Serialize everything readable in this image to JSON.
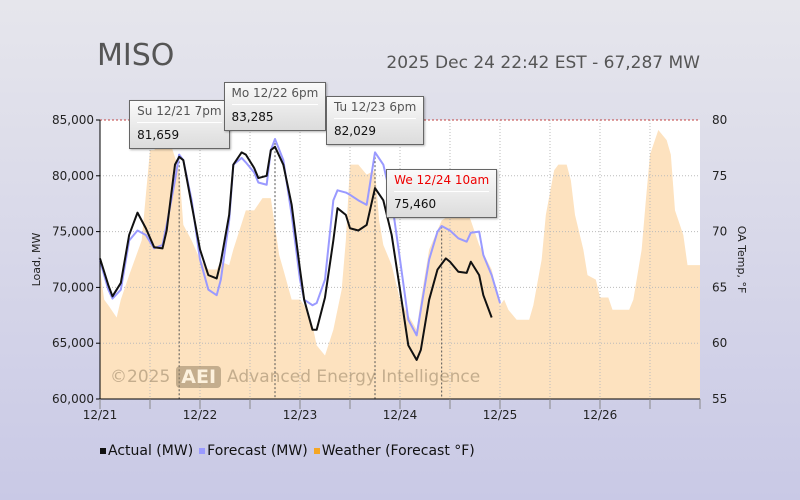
{
  "title": "MISO",
  "subtitle": "2025 Dec 24 22:42 EST - 67,287 MW",
  "watermark": {
    "copyright": "©2025",
    "logo": "AEI",
    "text": "Advanced Energy Intelligence"
  },
  "colors": {
    "actual": "#111111",
    "forecast": "#9a9aff",
    "weather": "#fde2bf",
    "max_line": "#c04040"
  },
  "legend": [
    {
      "label": "Actual (MW)",
      "color": "#111111"
    },
    {
      "label": "Forecast (MW)",
      "color": "#9a9aff"
    },
    {
      "label": "Weather (Forecast °F)",
      "color": "#f5a623"
    }
  ],
  "tooltips": [
    {
      "label": "Su 12/21 7pm",
      "value": "81,659",
      "hour": 19,
      "mw": 81659,
      "highlight": false
    },
    {
      "label": "Mo 12/22 6pm",
      "value": "83,285",
      "hour": 42,
      "mw": 83285,
      "highlight": false
    },
    {
      "label": "Tu 12/23 6pm",
      "value": "82,029",
      "hour": 66,
      "mw": 82029,
      "highlight": false
    },
    {
      "label": "We 12/24 10am",
      "value": "75,460",
      "hour": 82,
      "mw": 75460,
      "highlight": true
    }
  ],
  "chart_data": {
    "type": "line",
    "x_unit": "hours since 12/21 00:00",
    "xlim": [
      0,
      144
    ],
    "x_ticks": [
      {
        "hour": 0,
        "label": "12/21"
      },
      {
        "hour": 24,
        "label": "12/22"
      },
      {
        "hour": 48,
        "label": "12/23"
      },
      {
        "hour": 72,
        "label": "12/24"
      },
      {
        "hour": 96,
        "label": "12/25"
      },
      {
        "hour": 120,
        "label": "12/26"
      }
    ],
    "ylabel": "Load, MW",
    "ylim": [
      60000,
      85000
    ],
    "y_ticks": [
      "60,000",
      "65,000",
      "70,000",
      "75,000",
      "80,000",
      "85,000"
    ],
    "y2label": "OA Temp, °F",
    "y2lim": [
      55,
      80
    ],
    "y2_ticks": [
      "55",
      "60",
      "65",
      "70",
      "75",
      "80"
    ],
    "grid": true,
    "series": [
      {
        "name": "Weather (Forecast °F)",
        "axis": "right",
        "type": "area",
        "points": [
          [
            0,
            66.6
          ],
          [
            1,
            63.9
          ],
          [
            2,
            63.4
          ],
          [
            4,
            62.3
          ],
          [
            5,
            63.9
          ],
          [
            7,
            66.1
          ],
          [
            10,
            69.2
          ],
          [
            12,
            77.3
          ],
          [
            13,
            77.3
          ],
          [
            14,
            77.8
          ],
          [
            17,
            77.8
          ],
          [
            19,
            75.5
          ],
          [
            20,
            70.6
          ],
          [
            22,
            69.2
          ],
          [
            24,
            67.5
          ],
          [
            26,
            66.6
          ],
          [
            28,
            66.6
          ],
          [
            29,
            67.3
          ],
          [
            31,
            67.0
          ],
          [
            32,
            68.4
          ],
          [
            35,
            71.9
          ],
          [
            37,
            71.9
          ],
          [
            39,
            73.0
          ],
          [
            41,
            73.0
          ],
          [
            43,
            67.9
          ],
          [
            44,
            66.6
          ],
          [
            46,
            63.9
          ],
          [
            48,
            63.9
          ],
          [
            49,
            63.4
          ],
          [
            51,
            61.6
          ],
          [
            52,
            59.8
          ],
          [
            54,
            58.9
          ],
          [
            56,
            61.2
          ],
          [
            58,
            64.8
          ],
          [
            59,
            69.2
          ],
          [
            60,
            76.0
          ],
          [
            62,
            76.0
          ],
          [
            64,
            75.1
          ],
          [
            66,
            75.5
          ],
          [
            67,
            71.0
          ],
          [
            68,
            68.8
          ],
          [
            70,
            67.0
          ],
          [
            72,
            63.9
          ],
          [
            74,
            62.5
          ],
          [
            76,
            61.2
          ],
          [
            77,
            63.9
          ],
          [
            79,
            68.4
          ],
          [
            82,
            71.0
          ],
          [
            84,
            71.5
          ],
          [
            86,
            71.5
          ],
          [
            88,
            71.9
          ],
          [
            89,
            71.0
          ],
          [
            91,
            68.8
          ],
          [
            94,
            66.6
          ],
          [
            96,
            63.4
          ],
          [
            97,
            63.9
          ],
          [
            98,
            63.0
          ],
          [
            100,
            62.1
          ],
          [
            103,
            62.1
          ],
          [
            104,
            63.4
          ],
          [
            106,
            67.5
          ],
          [
            107,
            71.5
          ],
          [
            109,
            75.5
          ],
          [
            110,
            76.0
          ],
          [
            112,
            76.0
          ],
          [
            113,
            74.6
          ],
          [
            114,
            71.5
          ],
          [
            116,
            68.4
          ],
          [
            117,
            66.1
          ],
          [
            119,
            65.7
          ],
          [
            120,
            64.1
          ],
          [
            122,
            64.1
          ],
          [
            123,
            63.0
          ],
          [
            127,
            63.0
          ],
          [
            128,
            63.9
          ],
          [
            130,
            68.4
          ],
          [
            131,
            72.8
          ],
          [
            132,
            76.9
          ],
          [
            134,
            79.1
          ],
          [
            136,
            78.2
          ],
          [
            137,
            76.9
          ],
          [
            138,
            71.9
          ],
          [
            140,
            69.7
          ],
          [
            141,
            67.0
          ],
          [
            144,
            67.0
          ]
        ]
      },
      {
        "name": "Forecast (MW)",
        "axis": "left",
        "type": "line",
        "points": [
          [
            0,
            72400
          ],
          [
            2,
            69800
          ],
          [
            3,
            69000
          ],
          [
            5,
            69800
          ],
          [
            7,
            74200
          ],
          [
            9,
            75100
          ],
          [
            11,
            74700
          ],
          [
            13,
            73500
          ],
          [
            15,
            73800
          ],
          [
            16,
            75600
          ],
          [
            18,
            79600
          ],
          [
            19,
            81900
          ],
          [
            20,
            81400
          ],
          [
            22,
            77800
          ],
          [
            24,
            72500
          ],
          [
            26,
            69800
          ],
          [
            28,
            69300
          ],
          [
            29,
            70700
          ],
          [
            31,
            76000
          ],
          [
            32,
            81000
          ],
          [
            34,
            81600
          ],
          [
            35,
            81200
          ],
          [
            37,
            80300
          ],
          [
            38,
            79400
          ],
          [
            40,
            79200
          ],
          [
            41,
            82300
          ],
          [
            42,
            83300
          ],
          [
            44,
            81400
          ],
          [
            46,
            76500
          ],
          [
            48,
            70700
          ],
          [
            49,
            68900
          ],
          [
            51,
            68400
          ],
          [
            52,
            68600
          ],
          [
            54,
            70700
          ],
          [
            56,
            77800
          ],
          [
            57,
            78700
          ],
          [
            59,
            78500
          ],
          [
            60,
            78300
          ],
          [
            62,
            77800
          ],
          [
            64,
            77400
          ],
          [
            66,
            82100
          ],
          [
            68,
            81000
          ],
          [
            70,
            77800
          ],
          [
            72,
            72500
          ],
          [
            74,
            67100
          ],
          [
            76,
            65700
          ],
          [
            77,
            68000
          ],
          [
            79,
            72500
          ],
          [
            81,
            75000
          ],
          [
            82,
            75500
          ],
          [
            84,
            75100
          ],
          [
            86,
            74400
          ],
          [
            88,
            74100
          ],
          [
            89,
            74900
          ],
          [
            91,
            75000
          ],
          [
            92,
            72900
          ],
          [
            94,
            71100
          ],
          [
            96,
            68600
          ]
        ]
      },
      {
        "name": "Actual (MW)",
        "axis": "left",
        "type": "line",
        "points": [
          [
            0,
            72600
          ],
          [
            2,
            70200
          ],
          [
            3,
            69200
          ],
          [
            5,
            70400
          ],
          [
            7,
            74700
          ],
          [
            9,
            76700
          ],
          [
            11,
            75300
          ],
          [
            13,
            73600
          ],
          [
            15,
            73500
          ],
          [
            16,
            75100
          ],
          [
            18,
            81000
          ],
          [
            19,
            81700
          ],
          [
            20,
            81400
          ],
          [
            22,
            77400
          ],
          [
            24,
            73400
          ],
          [
            26,
            71100
          ],
          [
            28,
            70800
          ],
          [
            29,
            72300
          ],
          [
            31,
            76500
          ],
          [
            32,
            81000
          ],
          [
            34,
            82100
          ],
          [
            35,
            81900
          ],
          [
            37,
            80700
          ],
          [
            38,
            79800
          ],
          [
            40,
            80000
          ],
          [
            41,
            82300
          ],
          [
            42,
            82600
          ],
          [
            44,
            81000
          ],
          [
            46,
            77400
          ],
          [
            48,
            71600
          ],
          [
            49,
            68900
          ],
          [
            51,
            66200
          ],
          [
            52,
            66200
          ],
          [
            54,
            69100
          ],
          [
            56,
            74200
          ],
          [
            57,
            77100
          ],
          [
            59,
            76500
          ],
          [
            60,
            75300
          ],
          [
            62,
            75100
          ],
          [
            64,
            75600
          ],
          [
            66,
            78900
          ],
          [
            68,
            77800
          ],
          [
            70,
            74700
          ],
          [
            72,
            69800
          ],
          [
            74,
            64800
          ],
          [
            76,
            63500
          ],
          [
            77,
            64400
          ],
          [
            79,
            68900
          ],
          [
            81,
            71600
          ],
          [
            83,
            72600
          ],
          [
            84,
            72300
          ],
          [
            86,
            71400
          ],
          [
            88,
            71300
          ],
          [
            89,
            72300
          ],
          [
            91,
            71100
          ],
          [
            92,
            69300
          ],
          [
            94,
            67300
          ]
        ]
      }
    ]
  }
}
